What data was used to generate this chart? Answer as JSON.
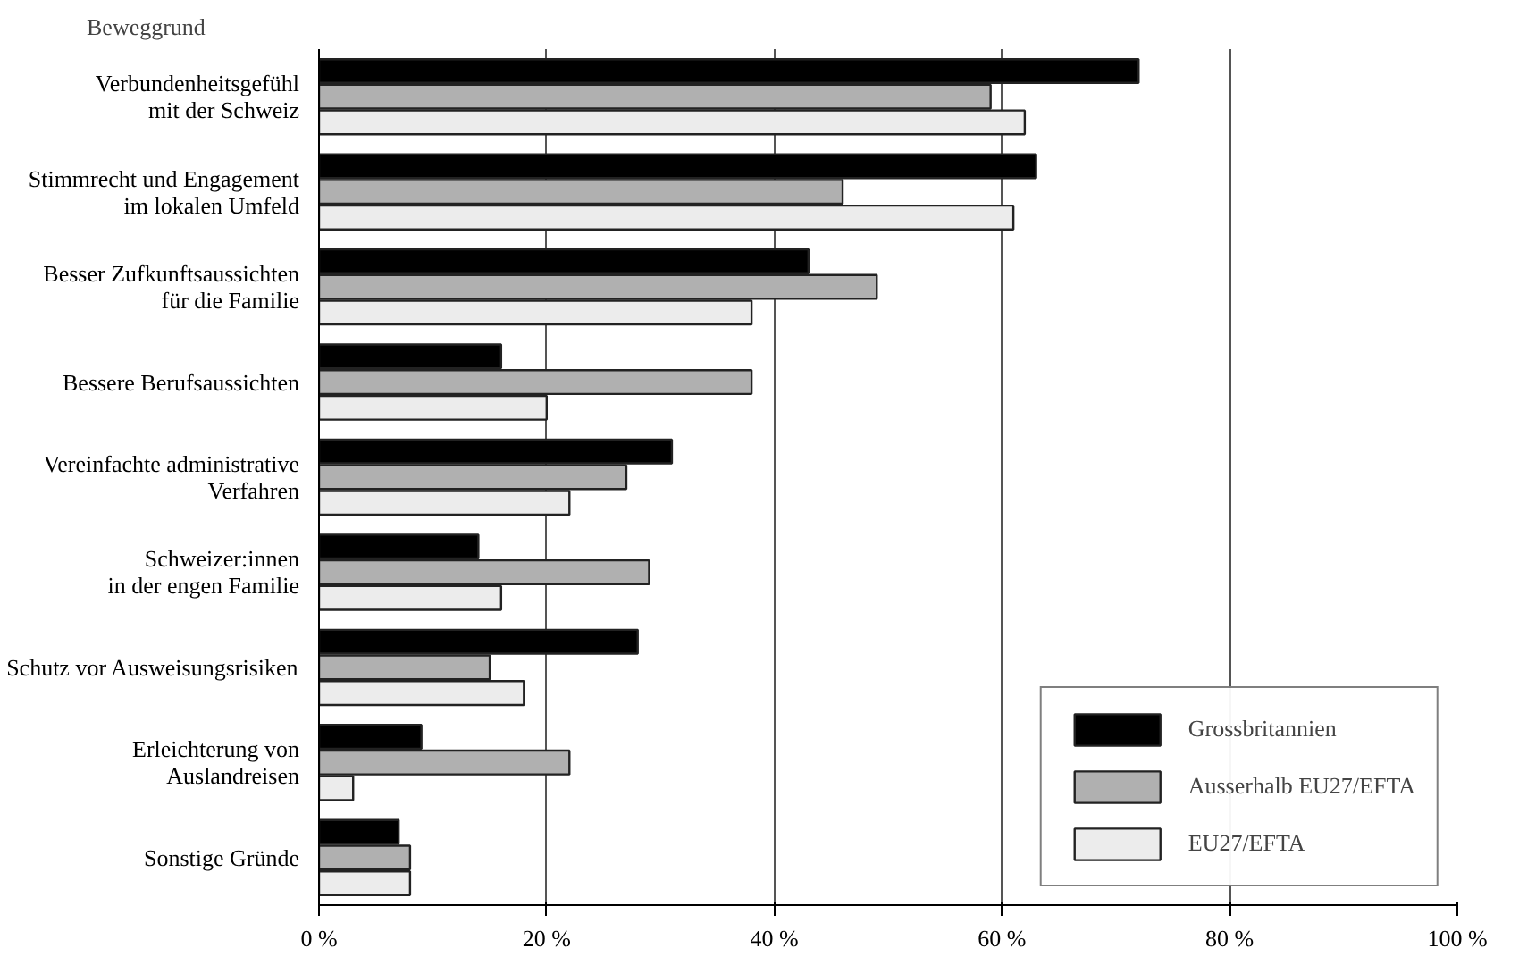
{
  "chart_data": {
    "type": "bar",
    "orientation": "horizontal",
    "ylabel": "Beweggrund",
    "categories": [
      "Verbundenheitsgefühl\nmit der Schweiz",
      "Stimmrecht und Engagement\nim lokalen Umfeld",
      "Besser Zufkunftsaussichten\nfür die Familie",
      "Bessere Berufsaussichten",
      "Vereinfachte administrative\nVerfahren",
      "Schweizer:innen\nin der engen Familie",
      "Schutz vor Ausweisungsrisiken",
      "Erleichterung von\nAuslandreisen",
      "Sonstige Gründe"
    ],
    "series": [
      {
        "name": "Grossbritannien",
        "color": "#000000",
        "values": [
          72,
          63,
          43,
          16,
          31,
          14,
          28,
          9,
          7
        ]
      },
      {
        "name": "Ausserhalb EU27/EFTA",
        "color": "#b0b0b0",
        "values": [
          59,
          46,
          49,
          38,
          27,
          29,
          15,
          22,
          8
        ]
      },
      {
        "name": "EU27/EFTA",
        "color": "#ececec",
        "values": [
          62,
          61,
          38,
          20,
          22,
          16,
          18,
          3,
          8
        ]
      }
    ],
    "xlim": [
      0,
      100
    ],
    "xticks": [
      {
        "value": 0,
        "label": "0 %"
      },
      {
        "value": 20,
        "label": "20 %"
      },
      {
        "value": 40,
        "label": "40 %"
      },
      {
        "value": 60,
        "label": "60 %"
      },
      {
        "value": 80,
        "label": "80 %"
      },
      {
        "value": 100,
        "label": "100 %"
      }
    ],
    "grid": "x",
    "legend": "bottom right"
  }
}
